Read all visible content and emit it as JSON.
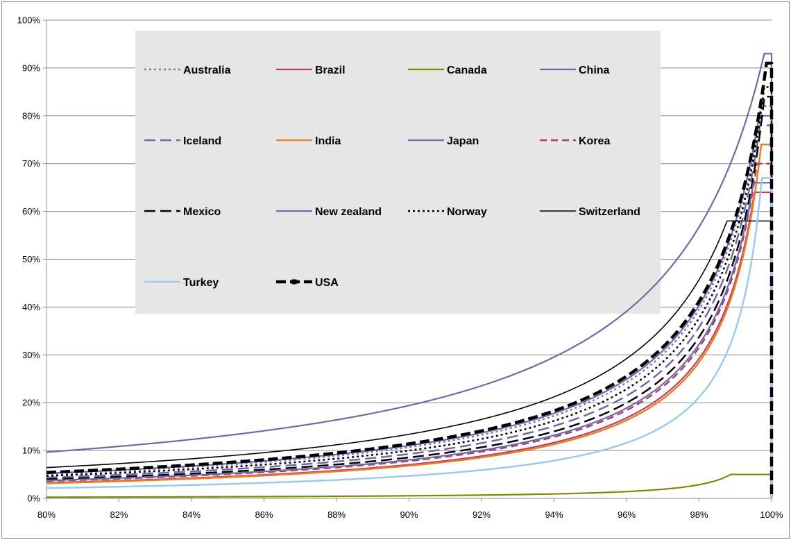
{
  "chart_data": {
    "type": "line",
    "title": "",
    "xlabel": "",
    "ylabel": "",
    "xlim": [
      0.8,
      1.0
    ],
    "ylim": [
      0,
      1.0
    ],
    "grid": "horizontal",
    "legend_position": "upper-left-inside",
    "x_ticks": [
      "80%",
      "82%",
      "84%",
      "86%",
      "88%",
      "90%",
      "92%",
      "94%",
      "96%",
      "98%",
      "100%"
    ],
    "y_ticks": [
      "0%",
      "10%",
      "20%",
      "30%",
      "40%",
      "50%",
      "60%",
      "70%",
      "80%",
      "90%",
      "100%"
    ],
    "series": [
      {
        "name": "Australia",
        "color": "#7b76b4",
        "dash": "dot",
        "width": 2.5,
        "k": 0.0135,
        "ymax": 0.82
      },
      {
        "name": "Brazil",
        "color": "#b0456a",
        "dash": "solid",
        "width": 2.2,
        "k": 0.0085,
        "ymax": 0.64
      },
      {
        "name": "Canada",
        "color": "#8a8400",
        "dash": "solid",
        "width": 2.2,
        "k": 0.0006,
        "ymax": 0.05
      },
      {
        "name": "China",
        "color": "#6e6aa8",
        "dash": "solid",
        "width": 2.2,
        "k": 0.014,
        "ymax": 0.8
      },
      {
        "name": "Iceland",
        "color": "#6e6aa8",
        "dash": "longdash",
        "width": 2.5,
        "k": 0.0115,
        "ymax": 0.78
      },
      {
        "name": "India",
        "color": "#f07c22",
        "dash": "solid",
        "width": 2.5,
        "k": 0.0082,
        "ymax": 0.74
      },
      {
        "name": "Japan",
        "color": "#6e6aa8",
        "dash": "solid",
        "width": 2.2,
        "k": 0.0275,
        "ymax": 0.93
      },
      {
        "name": "Korea",
        "color": "#a53d6d",
        "dash": "dash",
        "width": 2.5,
        "k": 0.0095,
        "ymax": 0.7
      },
      {
        "name": "Mexico",
        "color": "#000000",
        "dash": "longdash",
        "width": 2.5,
        "k": 0.0105,
        "ymax": 0.84
      },
      {
        "name": "New zealand",
        "color": "#6e6aa8",
        "dash": "solid",
        "width": 2.2,
        "k": 0.0098,
        "ymax": 0.66
      },
      {
        "name": "Norway",
        "color": "#000000",
        "dash": "dot",
        "width": 2.5,
        "k": 0.0125,
        "ymax": 0.86
      },
      {
        "name": "Switzerland",
        "color": "#000000",
        "dash": "solid",
        "width": 1.6,
        "k": 0.0175,
        "ymax": 0.58
      },
      {
        "name": "Turkey",
        "color": "#9ec8ee",
        "dash": "solid",
        "width": 2.5,
        "k": 0.0055,
        "ymax": 0.67
      },
      {
        "name": "USA",
        "color": "#000000",
        "dash": "dashmarker",
        "width": 4.5,
        "k": 0.0145,
        "ymax": 0.91
      }
    ]
  }
}
